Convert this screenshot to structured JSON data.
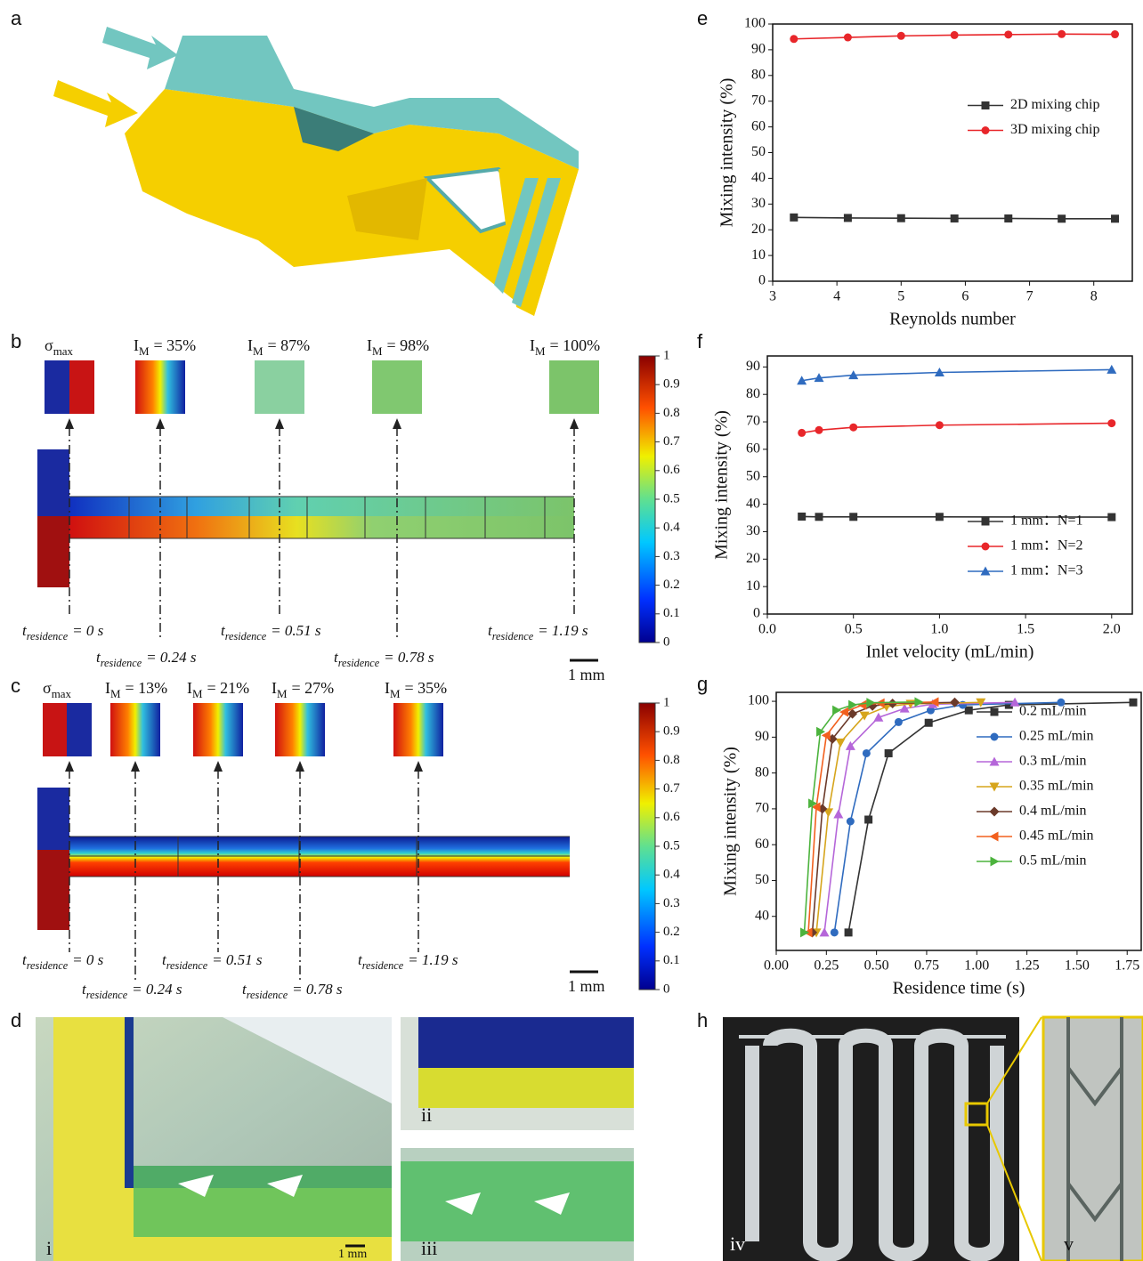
{
  "panel_labels": [
    "a",
    "b",
    "c",
    "d",
    "e",
    "f",
    "g",
    "h"
  ],
  "symbols": {
    "sigma": "σ",
    "max": "max",
    "I": "I",
    "M": "M",
    "t": "t",
    "residence": "residence"
  },
  "panel_b": {
    "mixing_labels": [
      "= 35%",
      "= 87%",
      "= 98%",
      "= 100%"
    ],
    "residence_labels": [
      "= 0 s",
      "= 0.24 s",
      "= 0.51 s",
      "= 0.78 s",
      "= 1.19 s"
    ],
    "scale_bar": "1 mm",
    "colorbar_ticks": [
      0,
      0.1,
      0.2,
      0.3,
      0.4,
      0.5,
      0.6,
      0.7,
      0.8,
      0.9,
      1
    ]
  },
  "panel_c": {
    "mixing_labels": [
      "= 13%",
      "= 21%",
      "= 27%",
      "= 35%"
    ],
    "residence_labels": [
      "= 0 s",
      "= 0.24 s",
      "= 0.51 s",
      "= 0.78 s",
      "= 1.19 s"
    ],
    "scale_bar": "1 mm",
    "colorbar_ticks": [
      0,
      0.1,
      0.2,
      0.3,
      0.4,
      0.5,
      0.6,
      0.7,
      0.8,
      0.9,
      1
    ]
  },
  "panel_d": {
    "labels": [
      "i",
      "ii",
      "iii"
    ],
    "scale_bar": "1 mm"
  },
  "panel_h": {
    "labels": [
      "iv",
      "v"
    ]
  },
  "chart_data": [
    {
      "type": "line",
      "xlabel": "Reynolds number",
      "ylabel": "Mixing intensity (%)",
      "x": [
        3.33,
        4.17,
        5,
        5.83,
        6.67,
        7.5,
        8.33
      ],
      "series": [
        {
          "name": "2D mixing chip",
          "color": "#333333",
          "marker": "square",
          "values": [
            24.8,
            24.6,
            24.5,
            24.4,
            24.4,
            24.3,
            24.3
          ]
        },
        {
          "name": "3D mixing chip",
          "color": "#e8262a",
          "marker": "circle",
          "values": [
            94.2,
            94.8,
            95.4,
            95.7,
            95.9,
            96.1,
            96.0
          ]
        }
      ],
      "xlim": [
        3,
        8.6
      ],
      "xticks": [
        3,
        4,
        5,
        6,
        7,
        8
      ],
      "ylim": [
        0,
        100
      ],
      "yticks": [
        0,
        10,
        20,
        30,
        40,
        50,
        60,
        70,
        80,
        90,
        100
      ],
      "legend": "center right"
    },
    {
      "type": "line",
      "xlabel": "Inlet  velocity (mL/min)",
      "ylabel": "Mixing intensity (%)",
      "x": [
        0.2,
        0.3,
        0.5,
        1.0,
        2.0
      ],
      "series": [
        {
          "name": "1 mm：N=1",
          "color": "#333333",
          "marker": "square",
          "values": [
            35.5,
            35.4,
            35.4,
            35.4,
            35.3
          ]
        },
        {
          "name": "1 mm：N=2",
          "color": "#e8262a",
          "marker": "circle",
          "values": [
            66,
            67,
            68,
            68.8,
            69.5
          ]
        },
        {
          "name": "1 mm：N=3",
          "color": "#2f6bbf",
          "marker": "triangle-up",
          "values": [
            85,
            86,
            87,
            88,
            89
          ]
        }
      ],
      "xlim": [
        0,
        2.12
      ],
      "xticks": [
        {
          "value": 0,
          "label": "0.0"
        },
        0.5,
        {
          "value": 1,
          "label": "1.0"
        },
        1.5,
        {
          "value": 2,
          "label": "2.0"
        }
      ],
      "ylim": [
        0,
        94
      ],
      "yticks": [
        0,
        10,
        20,
        30,
        40,
        50,
        60,
        70,
        80,
        90
      ],
      "legend": "lower right"
    },
    {
      "type": "line",
      "xlabel": "Residence time (s)",
      "ylabel": "Mixing intensity (%)",
      "series": [
        {
          "name": "0.2 mL/min",
          "color": "#333333",
          "marker": "square",
          "x": [
            0.36,
            0.46,
            0.56,
            0.76,
            0.96,
            1.16,
            1.78
          ],
          "values": [
            35.5,
            67,
            85.5,
            94,
            97.5,
            99,
            99.7
          ]
        },
        {
          "name": "0.25 mL/min",
          "color": "#2f6bbf",
          "marker": "circle",
          "x": [
            0.29,
            0.37,
            0.45,
            0.61,
            0.77,
            0.93,
            1.42
          ],
          "values": [
            35.5,
            66.5,
            85.5,
            94.2,
            97.5,
            99,
            99.7
          ]
        },
        {
          "name": "0.3 mL/min",
          "color": "#b566d9",
          "marker": "triangle-up",
          "x": [
            0.24,
            0.31,
            0.37,
            0.51,
            0.64,
            0.78,
            1.19
          ],
          "values": [
            35.5,
            68.5,
            87.5,
            95.5,
            98,
            99.2,
            99.7
          ]
        },
        {
          "name": "0.35 mL/min",
          "color": "#d6a51c",
          "marker": "triangle-down",
          "x": [
            0.2,
            0.26,
            0.32,
            0.44,
            0.55,
            0.67,
            1.02
          ],
          "values": [
            35.5,
            69,
            88.5,
            96,
            98.5,
            99.3,
            99.7
          ]
        },
        {
          "name": "0.4 mL/min",
          "color": "#6b3a2a",
          "marker": "diamond",
          "x": [
            0.18,
            0.23,
            0.28,
            0.38,
            0.48,
            0.58,
            0.89
          ],
          "values": [
            35.5,
            70,
            89.5,
            96.5,
            98.7,
            99.4,
            99.7
          ]
        },
        {
          "name": "0.45 mL/min",
          "color": "#f2601e",
          "marker": "triangle-left",
          "x": [
            0.16,
            0.2,
            0.25,
            0.34,
            0.43,
            0.52,
            0.79
          ],
          "values": [
            35.5,
            70.5,
            90.5,
            97,
            99,
            99.5,
            99.8
          ]
        },
        {
          "name": "0.5 mL/min",
          "color": "#4cb33d",
          "marker": "triangle-right",
          "x": [
            0.14,
            0.18,
            0.22,
            0.3,
            0.38,
            0.47,
            0.71
          ],
          "values": [
            35.5,
            71.5,
            91.5,
            97.5,
            99,
            99.6,
            99.8
          ]
        }
      ],
      "xlim": [
        0,
        1.82
      ],
      "xticks": [
        {
          "value": 0,
          "label": "0.00"
        },
        0.25,
        {
          "value": 0.5,
          "label": "0.50"
        },
        0.75,
        {
          "value": 1,
          "label": "1.00"
        },
        1.25,
        {
          "value": 1.5,
          "label": "1.50"
        },
        1.75
      ],
      "ylim": [
        30.5,
        102.5
      ],
      "yticks": [
        40,
        50,
        60,
        70,
        80,
        90,
        100
      ],
      "legend": "center right"
    }
  ]
}
